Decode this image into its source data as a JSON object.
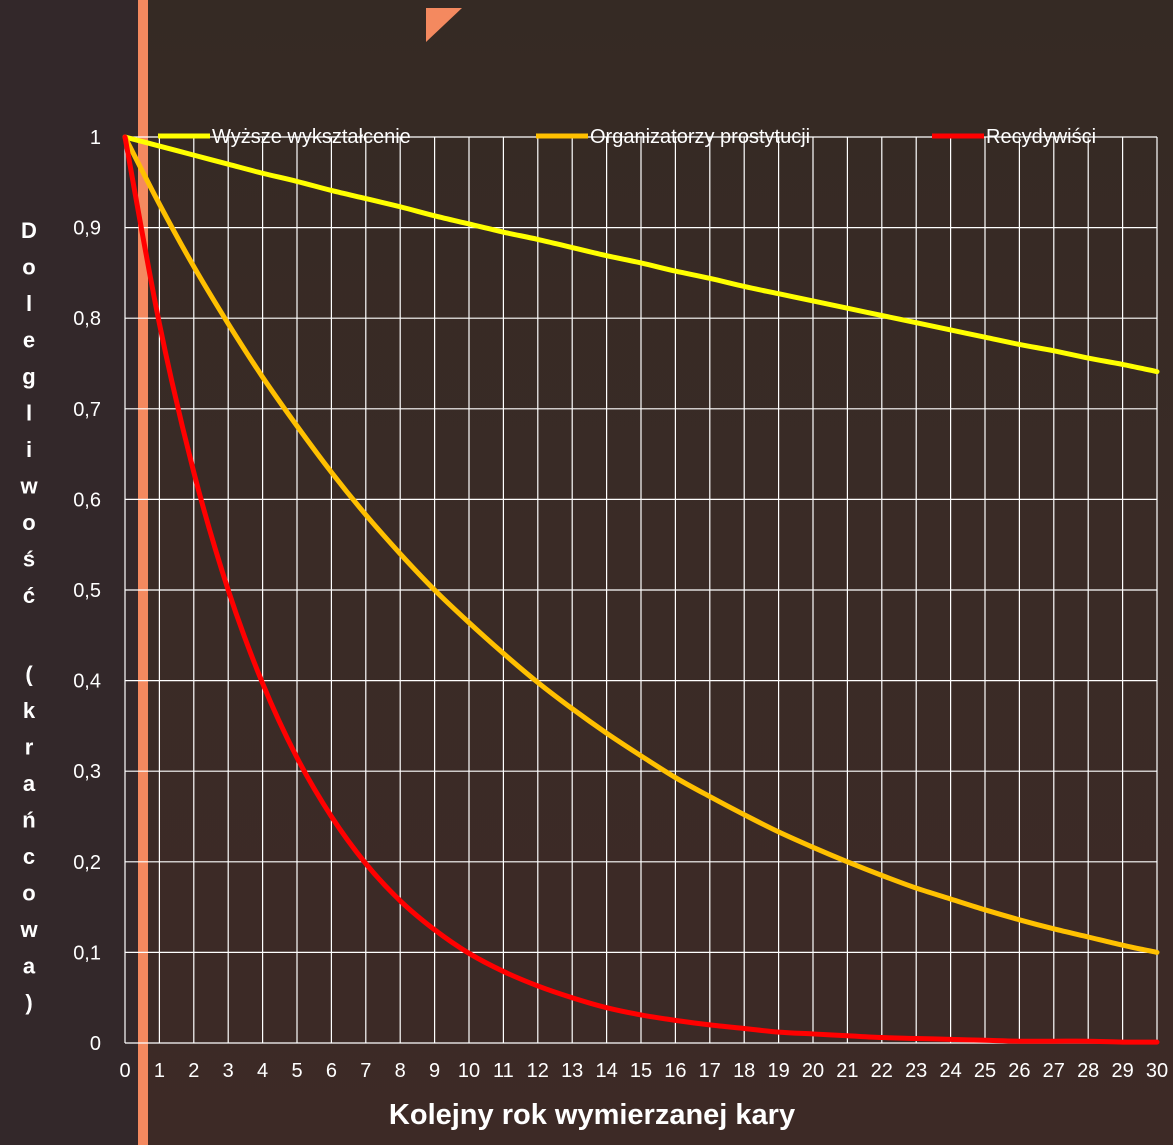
{
  "colors": {
    "accent": "#f4895f",
    "grid": "#ffffff",
    "text": "#ffffff",
    "series": [
      "#ffff00",
      "#ffc000",
      "#ff0000"
    ]
  },
  "chart_data": {
    "type": "line",
    "title": "",
    "xlabel": "Kolejny rok wymierzanej kary",
    "ylabel": "Dolegliwość (krańcowa)",
    "xlim": [
      0,
      30
    ],
    "ylim": [
      0,
      1
    ],
    "x_ticks": [
      "0",
      "1",
      "2",
      "3",
      "4",
      "5",
      "6",
      "7",
      "8",
      "9",
      "10",
      "11",
      "12",
      "13",
      "14",
      "15",
      "16",
      "17",
      "18",
      "19",
      "20",
      "21",
      "22",
      "23",
      "24",
      "25",
      "26",
      "27",
      "28",
      "29",
      "30"
    ],
    "y_ticks": [
      "0",
      "0,1",
      "0,2",
      "0,3",
      "0,4",
      "0,5",
      "0,6",
      "0,7",
      "0,8",
      "0,9",
      "1"
    ],
    "grid": true,
    "legend_position": "top",
    "x": [
      0,
      1,
      2,
      3,
      4,
      5,
      6,
      7,
      8,
      9,
      10,
      11,
      12,
      13,
      14,
      15,
      16,
      17,
      18,
      19,
      20,
      21,
      22,
      23,
      24,
      25,
      26,
      27,
      28,
      29,
      30
    ],
    "series": [
      {
        "name": "Wyższe wykształcenie",
        "color": "#ffff00",
        "values": [
          1,
          0.99,
          0.98,
          0.97,
          0.96,
          0.951,
          0.941,
          0.932,
          0.923,
          0.913,
          0.904,
          0.895,
          0.887,
          0.878,
          0.869,
          0.861,
          0.852,
          0.844,
          0.835,
          0.827,
          0.819,
          0.811,
          0.803,
          0.795,
          0.787,
          0.779,
          0.771,
          0.764,
          0.756,
          0.749,
          0.741
        ]
      },
      {
        "name": "Organizatorzy prostytucji",
        "color": "#ffc000",
        "values": [
          1,
          0.926,
          0.857,
          0.794,
          0.735,
          0.681,
          0.63,
          0.583,
          0.54,
          0.5,
          0.464,
          0.43,
          0.398,
          0.369,
          0.342,
          0.317,
          0.293,
          0.272,
          0.252,
          0.233,
          0.216,
          0.2,
          0.185,
          0.171,
          0.159,
          0.147,
          0.136,
          0.126,
          0.117,
          0.108,
          0.1
        ]
      },
      {
        "name": "Recydywiści",
        "color": "#ff0000",
        "values": [
          1,
          0.794,
          0.63,
          0.5,
          0.397,
          0.315,
          0.25,
          0.198,
          0.157,
          0.125,
          0.099,
          0.079,
          0.063,
          0.05,
          0.039,
          0.031,
          0.025,
          0.02,
          0.016,
          0.012,
          0.01,
          0.008,
          0.006,
          0.005,
          0.004,
          0.003,
          0.002,
          0.002,
          0.002,
          0.001,
          0.001
        ]
      }
    ]
  }
}
